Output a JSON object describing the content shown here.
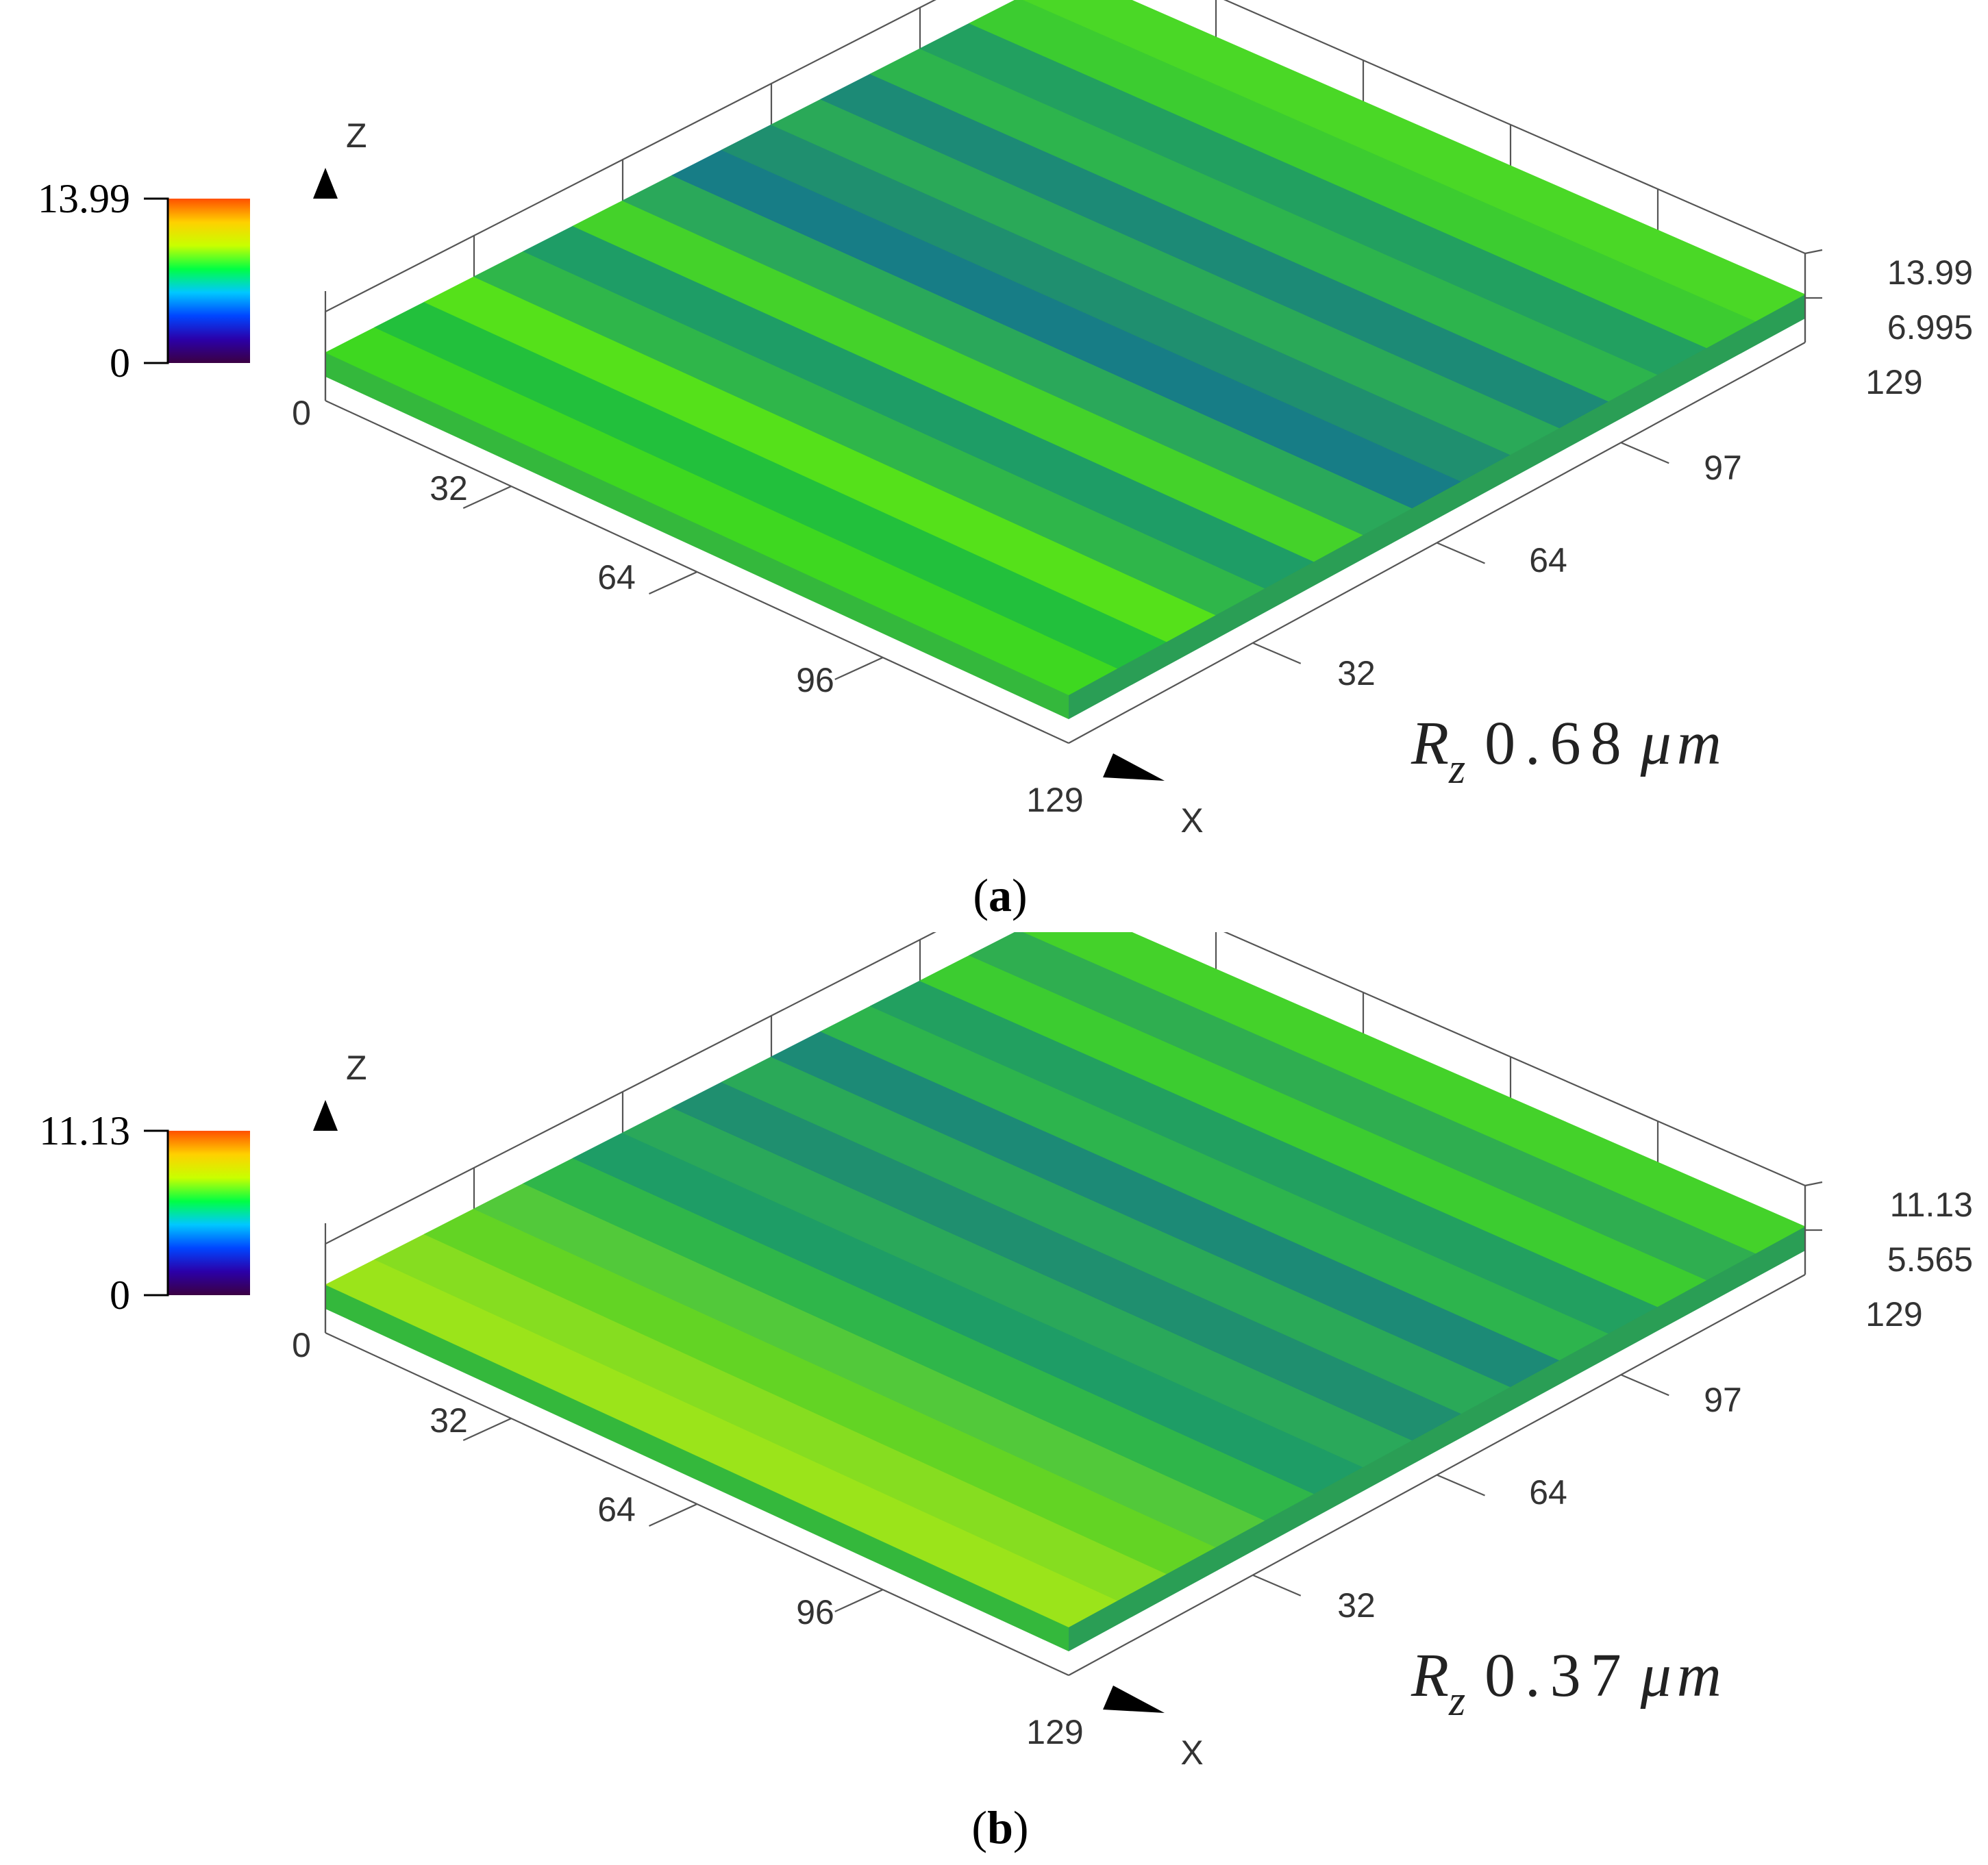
{
  "chart_data": [
    {
      "type": "surface",
      "panel_label": "(a)",
      "caption_open": "(",
      "caption_letter": "a",
      "caption_close": ")",
      "colorbar": {
        "max_label": "13.99",
        "min_label": "0",
        "colors": [
          "#3b0042",
          "#2b00a8",
          "#0045ff",
          "#00c8ff",
          "#00ff44",
          "#c8ff00",
          "#ffd000",
          "#ff5000"
        ]
      },
      "z_axis": {
        "label": "Z",
        "ticks": [
          "13.99",
          "6.995"
        ]
      },
      "x_axis": {
        "label": "X",
        "ticks": [
          "0",
          "32",
          "64",
          "96",
          "129"
        ]
      },
      "y_axis": {
        "ticks": [
          "32",
          "64",
          "97",
          "129"
        ]
      },
      "rz": {
        "symbol": "R",
        "subscript": "z",
        "value": "0.68",
        "unit": "μm"
      },
      "surface_stripes": [
        "#3ed820",
        "#22c03c",
        "#55e11a",
        "#2fb64a",
        "#1e9d66",
        "#44d22a",
        "#2aa85a",
        "#177d86",
        "#1f8f6f",
        "#2aa958",
        "#1c8a76",
        "#2db44d",
        "#22a060",
        "#3ccc30",
        "#4ad826"
      ]
    },
    {
      "type": "surface",
      "panel_label": "(b)",
      "caption_open": "(",
      "caption_letter": "b",
      "caption_close": ")",
      "colorbar": {
        "max_label": "11.13",
        "min_label": "0",
        "colors": [
          "#3b0042",
          "#2b00a8",
          "#0045ff",
          "#00c8ff",
          "#00ff44",
          "#c8ff00",
          "#ffd000",
          "#ff5000"
        ]
      },
      "z_axis": {
        "label": "Z",
        "ticks": [
          "11.13",
          "5.565"
        ]
      },
      "x_axis": {
        "label": "X",
        "ticks": [
          "0",
          "32",
          "64",
          "96",
          "129"
        ]
      },
      "y_axis": {
        "ticks": [
          "32",
          "64",
          "97",
          "129"
        ]
      },
      "rz": {
        "symbol": "R",
        "subscript": "z",
        "value": "0.37",
        "unit": "μm"
      },
      "surface_stripes": [
        "#9be41a",
        "#86dd20",
        "#63d424",
        "#52c93a",
        "#2fb64a",
        "#1e9d66",
        "#2aa85a",
        "#1f8f6f",
        "#2aa958",
        "#1c8a76",
        "#2db44d",
        "#22a060",
        "#3ccc30",
        "#2fae50",
        "#44d22a"
      ]
    }
  ]
}
